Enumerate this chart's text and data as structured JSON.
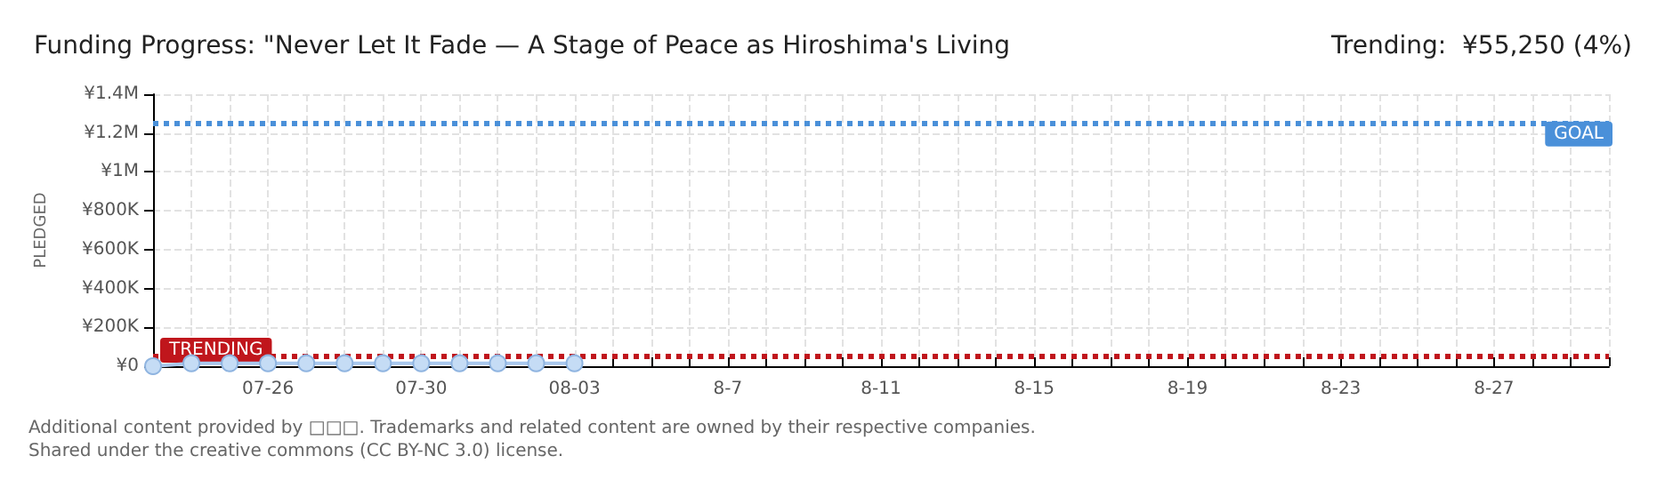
{
  "chart_data": {
    "type": "line",
    "title": "Funding Progress: \"Never Let It Fade — A Stage of Peace as Hiroshima's Living",
    "subtitle": "Trending:  ¥55,250 (4%)",
    "ylabel": "PLEDGED",
    "x": [
      "--07-23",
      "--07-24",
      "--07-25",
      "--07-26",
      "--07-27",
      "--07-28",
      "--07-29",
      "--07-30",
      "--07-31",
      "--08-01",
      "--08-02",
      "--08-03"
    ],
    "series": [
      {
        "color": "#a9c8ee",
        "values": [
          0,
          15000,
          15000,
          15000,
          15000,
          15000,
          15000,
          15000,
          15000,
          15000,
          15000,
          15000
        ]
      }
    ],
    "xlim": [
      "--07-23",
      "--08-30"
    ],
    "xticks": [
      {
        "value": "--07-23",
        "label": null
      },
      {
        "value": "--07-24",
        "label": null
      },
      {
        "value": "--07-25",
        "label": null
      },
      {
        "value": "--07-26",
        "label": "07-26"
      },
      {
        "value": "--07-27",
        "label": null
      },
      {
        "value": "--07-28",
        "label": null
      },
      {
        "value": "--07-29",
        "label": null
      },
      {
        "value": "--07-30",
        "label": "07-30"
      },
      {
        "value": "--07-31",
        "label": null
      },
      {
        "value": "--08-01",
        "label": null
      },
      {
        "value": "--08-02",
        "label": null
      },
      {
        "value": "--08-03",
        "label": "08-03"
      },
      {
        "value": "--08-04",
        "label": null
      },
      {
        "value": "--08-05",
        "label": null
      },
      {
        "value": "--08-06",
        "label": null
      },
      {
        "value": "--08-07",
        "label": "8-7"
      },
      {
        "value": "--08-08",
        "label": null
      },
      {
        "value": "--08-09",
        "label": null
      },
      {
        "value": "--08-10",
        "label": null
      },
      {
        "value": "--08-11",
        "label": "8-11"
      },
      {
        "value": "--08-12",
        "label": null
      },
      {
        "value": "--08-13",
        "label": null
      },
      {
        "value": "--08-14",
        "label": null
      },
      {
        "value": "--08-15",
        "label": "8-15"
      },
      {
        "value": "--08-16",
        "label": null
      },
      {
        "value": "--08-17",
        "label": null
      },
      {
        "value": "--08-18",
        "label": null
      },
      {
        "value": "--08-19",
        "label": "8-19"
      },
      {
        "value": "--08-20",
        "label": null
      },
      {
        "value": "--08-21",
        "label": null
      },
      {
        "value": "--08-22",
        "label": null
      },
      {
        "value": "--08-23",
        "label": "8-23"
      },
      {
        "value": "--08-24",
        "label": null
      },
      {
        "value": "--08-25",
        "label": null
      },
      {
        "value": "--08-26",
        "label": null
      },
      {
        "value": "--08-27",
        "label": "8-27"
      },
      {
        "value": "--08-28",
        "label": null
      },
      {
        "value": "--08-29",
        "label": null
      },
      {
        "value": "--08-30",
        "label": null
      }
    ],
    "ylim": [
      0,
      1400000
    ],
    "yticks": [
      {
        "value": 0,
        "label": "¥0"
      },
      {
        "value": 200000,
        "label": "¥200K"
      },
      {
        "value": 400000,
        "label": "¥400K"
      },
      {
        "value": 600000,
        "label": "¥600K"
      },
      {
        "value": 800000,
        "label": "¥800K"
      },
      {
        "value": 1000000,
        "label": "¥1M"
      },
      {
        "value": 1200000,
        "label": "¥1.2M"
      },
      {
        "value": 1400000,
        "label": "¥1.4M"
      }
    ],
    "ref_lines": [
      {
        "axis": "y",
        "value": 1250000,
        "label": "GOAL",
        "color": "#4a90d9",
        "line_style": "dotted"
      },
      {
        "axis": "y",
        "value": 55250,
        "label": "TRENDING",
        "color": "#c0161c",
        "line_style": "dotted"
      }
    ],
    "annotations": [
      "Additional content provided by □□□. Trademarks and related content are owned by their respective companies.",
      "Shared under the creative commons (CC BY-NC 3.0) license."
    ],
    "grid": true,
    "marker": "circle",
    "line_style": "solid"
  }
}
